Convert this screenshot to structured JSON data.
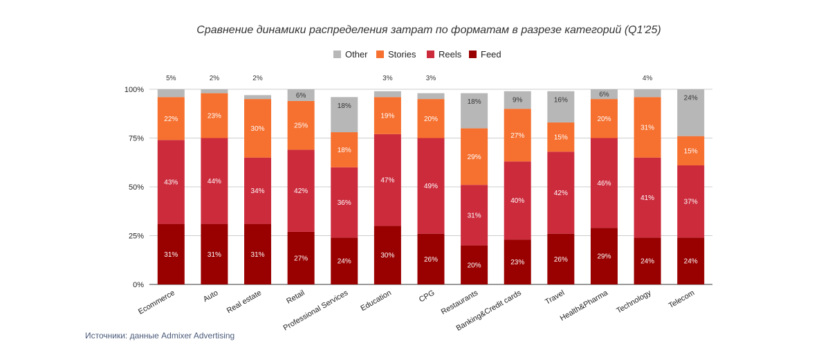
{
  "chart_data": {
    "type": "bar",
    "stacked": true,
    "title": "Сравнение динамики распределения затрат по форматам в разрезе категорий (Q1'25)",
    "xlabel": "",
    "ylabel": "",
    "ylim": [
      0,
      100
    ],
    "y_ticks": [
      "0%",
      "25%",
      "50%",
      "75%",
      "100%"
    ],
    "grid": true,
    "legend_position": "top",
    "categories": [
      "Ecommerce",
      "Auto",
      "Real estate",
      "Retail",
      "Professional Services",
      "Education",
      "CPG",
      "Restaurants",
      "Banking&Credit cards",
      "Travel",
      "Health&Pharma",
      "Technology",
      "Telecom"
    ],
    "series": [
      {
        "name": "Feed",
        "color": "#990000",
        "values": [
          31,
          31,
          31,
          27,
          24,
          30,
          26,
          20,
          23,
          26,
          29,
          24,
          24
        ]
      },
      {
        "name": "Reels",
        "color": "#cc2b3c",
        "values": [
          43,
          44,
          34,
          42,
          36,
          47,
          49,
          31,
          40,
          42,
          46,
          41,
          37
        ]
      },
      {
        "name": "Stories",
        "color": "#f6702f",
        "values": [
          22,
          23,
          30,
          25,
          18,
          19,
          20,
          29,
          27,
          15,
          20,
          31,
          15
        ]
      },
      {
        "name": "Other",
        "color": "#b7b7b7",
        "values": [
          5,
          2,
          2,
          6,
          18,
          3,
          3,
          18,
          9,
          16,
          6,
          4,
          24
        ]
      }
    ],
    "legend_order": [
      "Other",
      "Stories",
      "Reels",
      "Feed"
    ],
    "value_suffix": "%"
  },
  "source_text": "Источники: данные Admixer Advertising"
}
